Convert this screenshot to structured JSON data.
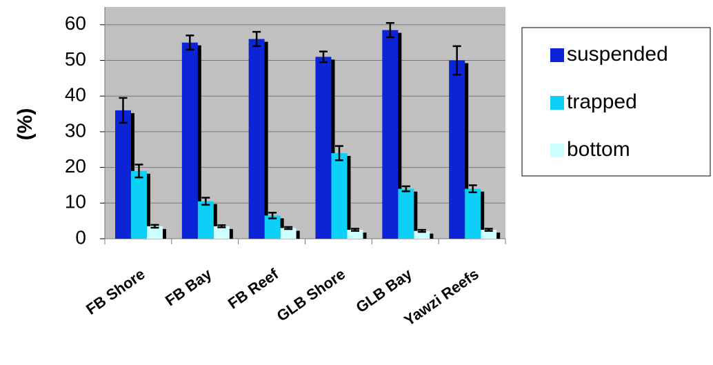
{
  "chart_data": {
    "type": "bar",
    "y_label": "(%)",
    "categories": [
      "FB Shore",
      "FB Bay",
      "FB Reef",
      "GLB Shore",
      "GLB Bay",
      "Yawzi Reefs"
    ],
    "series": [
      {
        "name": "suspended",
        "color": "#0a24d6",
        "values": [
          36,
          55,
          56,
          51,
          58.5,
          50
        ],
        "errors": [
          3.5,
          2,
          2,
          1.5,
          2,
          4
        ]
      },
      {
        "name": "trapped",
        "color": "#0cd0f5",
        "values": [
          19,
          10.5,
          6.5,
          24,
          14,
          14
        ],
        "errors": [
          1.8,
          1,
          0.8,
          2,
          0.7,
          1
        ]
      },
      {
        "name": "bottom",
        "color": "#ccffff",
        "values": [
          3.5,
          3.5,
          3,
          2.5,
          2.2,
          2.5
        ],
        "errors": [
          0.4,
          0.3,
          0.3,
          0.3,
          0.3,
          0.3
        ]
      }
    ],
    "ylim": [
      0,
      65
    ],
    "yticks": [
      0,
      10,
      20,
      30,
      40,
      50,
      60
    ],
    "grid": true,
    "legend": "right"
  }
}
